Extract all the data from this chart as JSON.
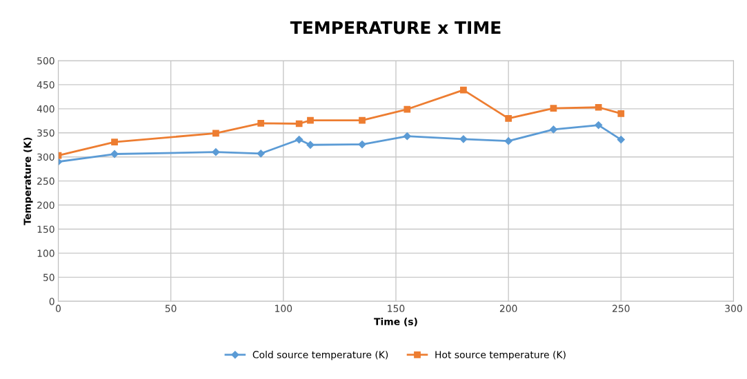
{
  "chart_data": {
    "type": "line",
    "title": "TEMPERATURE x TIME",
    "xlabel": "Time (s)",
    "ylabel": "Temperature (K)",
    "x": [
      0,
      25,
      70,
      90,
      107,
      112,
      135,
      155,
      180,
      200,
      220,
      240,
      250
    ],
    "series": [
      {
        "name": "Cold source temperature (K)",
        "color": "#5b9bd5",
        "marker": "diamond",
        "values": [
          290,
          306,
          310,
          307,
          336,
          325,
          326,
          343,
          337,
          333,
          357,
          366,
          336
        ]
      },
      {
        "name": "Hot source temperature (K)",
        "color": "#ed7d31",
        "marker": "square",
        "values": [
          303,
          331,
          349,
          370,
          369,
          376,
          376,
          399,
          439,
          380,
          401,
          403,
          390
        ]
      }
    ],
    "xlim": [
      0,
      300
    ],
    "xticks": [
      0,
      50,
      100,
      150,
      200,
      250,
      300
    ],
    "ylim": [
      0,
      500
    ],
    "yticks": [
      0,
      50,
      100,
      150,
      200,
      250,
      300,
      350,
      400,
      450,
      500
    ],
    "grid": true,
    "legend": "bottom",
    "line_style": "solid"
  }
}
